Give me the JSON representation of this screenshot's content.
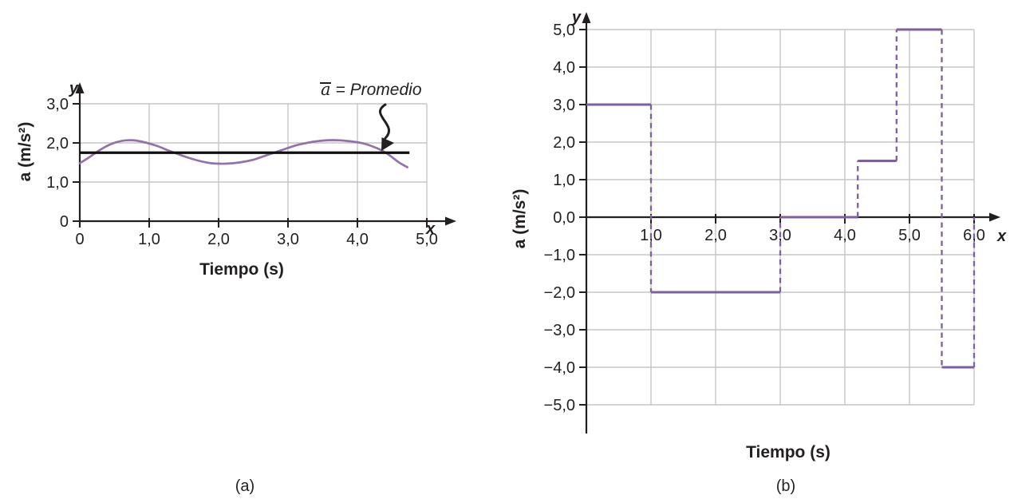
{
  "colors": {
    "background": "#ffffff",
    "grid": "#c6c6c6",
    "axis": "#231f20",
    "text": "#231f20",
    "curve": "#9172ac",
    "step": "#7e5fa3",
    "average": "#0f0f0f"
  },
  "chart_data": [
    {
      "id": "a",
      "type": "line",
      "caption": "(a)",
      "xlabel": "Tiempo (s)",
      "ylabel": "a (m/s²)",
      "x_arrow_label": "x",
      "y_arrow_label": "y",
      "xlim": [
        0,
        5.3
      ],
      "ylim": [
        0,
        3.3
      ],
      "grid": true,
      "xticks": [
        0,
        1,
        2,
        3,
        4,
        5
      ],
      "xtick_labels": [
        "0",
        "1,0",
        "2,0",
        "3,0",
        "4,0",
        "5,0"
      ],
      "yticks": [
        0,
        1,
        2,
        3
      ],
      "ytick_labels": [
        "0",
        "1,0",
        "2,0",
        "3,0"
      ],
      "series": [
        {
          "x": [
            0,
            0.15,
            0.3,
            0.45,
            0.6,
            0.75,
            0.9,
            1.1,
            1.3,
            1.5,
            1.7,
            1.9,
            2.1,
            2.3,
            2.5,
            2.7,
            2.9,
            3.1,
            3.3,
            3.5,
            3.7,
            3.9,
            4.1,
            4.3,
            4.45,
            4.6,
            4.72
          ],
          "y": [
            1.48,
            1.65,
            1.83,
            1.97,
            2.05,
            2.07,
            2.03,
            1.93,
            1.79,
            1.66,
            1.55,
            1.48,
            1.47,
            1.5,
            1.57,
            1.69,
            1.81,
            1.93,
            2.01,
            2.06,
            2.07,
            2.04,
            1.98,
            1.85,
            1.7,
            1.5,
            1.38
          ]
        }
      ],
      "average": {
        "value": 1.75,
        "x_start": 0,
        "x_end": 4.75,
        "label_symbol": "a",
        "label_text": "= Promedio"
      }
    },
    {
      "id": "b",
      "type": "step",
      "caption": "(b)",
      "xlabel": "Tiempo (s)",
      "ylabel": "a (m/s²)",
      "x_arrow_label": "x",
      "y_arrow_label": "y",
      "xlim": [
        0,
        6.3
      ],
      "ylim": [
        -5.5,
        5.5
      ],
      "grid": true,
      "xticks": [
        1,
        2,
        3,
        4,
        5,
        6
      ],
      "xtick_labels": [
        "1,0",
        "2,0",
        "3,0",
        "4,0",
        "5,0",
        "6,0"
      ],
      "yticks": [
        -5,
        -4,
        -3,
        -2,
        -1,
        0,
        1,
        2,
        3,
        4,
        5
      ],
      "ytick_labels": [
        "−5,0",
        "−4,0",
        "−3,0",
        "−2,0",
        "−1,0",
        "0,0",
        "1,0",
        "2,0",
        "3,0",
        "4,0",
        "5,0"
      ],
      "steps": [
        {
          "x0": 0,
          "x1": 1,
          "value": 3.0
        },
        {
          "x0": 1,
          "x1": 3,
          "value": -2.0
        },
        {
          "x0": 3,
          "x1": 4.2,
          "value": 0.0
        },
        {
          "x0": 4.2,
          "x1": 4.8,
          "value": 1.5
        },
        {
          "x0": 4.8,
          "x1": 5.5,
          "value": 5.0
        },
        {
          "x0": 5.5,
          "x1": 6,
          "value": -4.0
        }
      ],
      "end_dash": {
        "x": 6,
        "from": -4.0,
        "to": 0.0
      }
    }
  ]
}
